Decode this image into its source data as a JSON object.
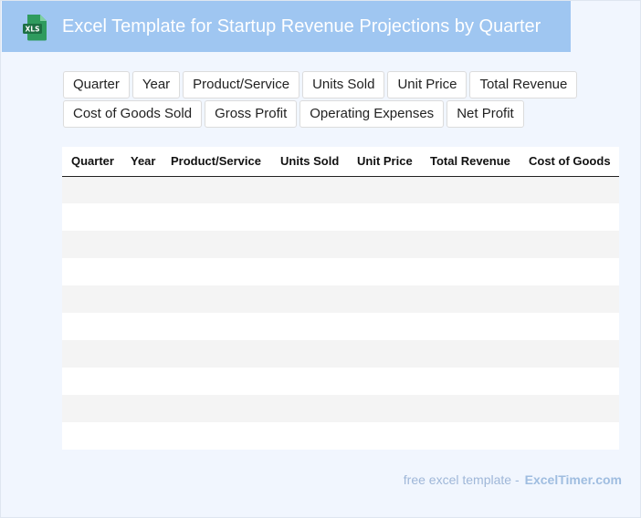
{
  "header": {
    "title": "Excel Template for Startup Revenue Projections by Quarter",
    "logo_text": "XLS",
    "logo_icon": "xls-file-icon"
  },
  "chips": {
    "row1": [
      "Quarter",
      "Year",
      "Product/Service",
      "Units Sold",
      "Unit Price",
      "Total Revenue"
    ],
    "row2": [
      "Cost of Goods Sold",
      "Gross Profit",
      "Operating Expenses",
      "Net Profit"
    ]
  },
  "table": {
    "columns": [
      "Quarter",
      "Year",
      "Product/Service",
      "Units Sold",
      "Unit Price",
      "Total Revenue",
      "Cost of Goods"
    ],
    "rows": [
      [],
      [],
      [],
      [],
      [],
      [],
      [],
      [],
      [],
      []
    ]
  },
  "footer": {
    "text": "free excel template -",
    "brand": "ExcelTimer.com"
  },
  "colors": {
    "header_bg": "#9fc6f1",
    "page_bg": "#f1f6fe",
    "logo_green": "#1d7044"
  }
}
